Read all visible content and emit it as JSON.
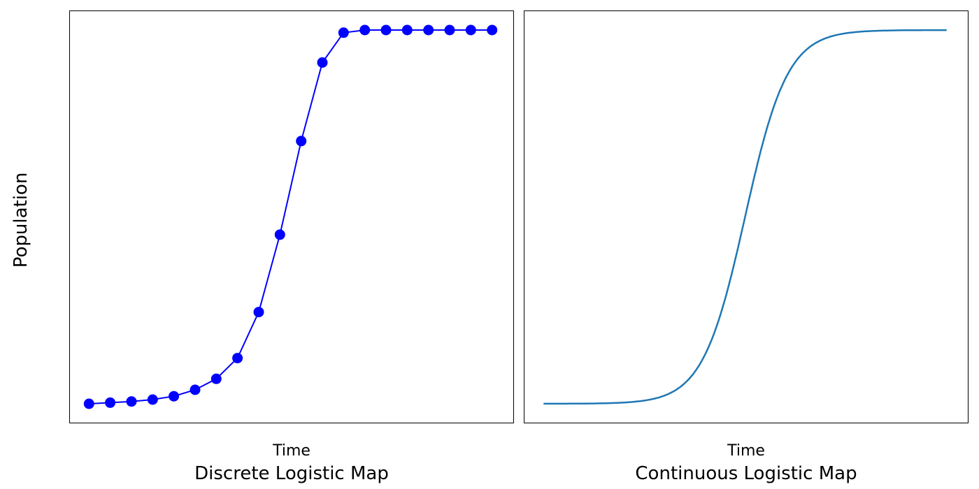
{
  "figure": {
    "ylabel": "Population"
  },
  "chart_data": [
    {
      "type": "scatter",
      "title": "Discrete Logistic Map",
      "xlabel": "Time",
      "ylabel": "Population",
      "x": [
        0,
        1,
        2,
        3,
        4,
        5,
        6,
        7,
        8,
        9,
        10,
        11,
        12,
        13,
        14,
        15,
        16,
        17,
        18,
        19
      ],
      "series": [
        {
          "color": "#0000ff",
          "marker": "circle",
          "values": [
            0.01,
            0.013,
            0.016,
            0.021,
            0.03,
            0.047,
            0.076,
            0.131,
            0.253,
            0.458,
            0.706,
            0.914,
            0.993,
            1.0,
            1.0,
            1.0,
            1.0,
            1.0,
            1.0,
            1.0
          ]
        }
      ],
      "xlim": [
        -0.9,
        20
      ],
      "ylim": [
        -0.04,
        1.05
      ],
      "ticks": false,
      "grid": false
    },
    {
      "type": "line",
      "title": "Continuous Logistic Map",
      "xlabel": "Time",
      "ylabel": "Population",
      "series": [
        {
          "color": "#1f77b4",
          "function": "logistic",
          "x0": 0,
          "x1": 19,
          "midpoint": 9.5,
          "rate": 1.0,
          "min": 0.01,
          "max": 1.0
        }
      ],
      "xlim": [
        -0.9,
        20
      ],
      "ylim": [
        -0.04,
        1.05
      ],
      "ticks": false,
      "grid": false
    }
  ]
}
